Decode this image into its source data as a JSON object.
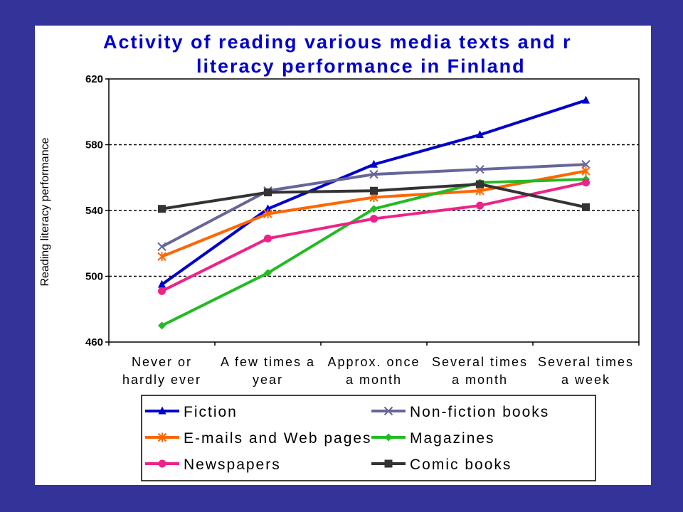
{
  "chart_data": {
    "type": "line",
    "title_lines": [
      "Activity of reading various media texts and r",
      "literacy performance in Finland"
    ],
    "xlabel": "",
    "ylabel": "Reading literacy performance",
    "ylim": [
      460,
      620
    ],
    "yticks": [
      460,
      500,
      540,
      580,
      620
    ],
    "grid": "horizontal dashed",
    "legend_position": "bottom",
    "categories": [
      [
        "Never or",
        "hardly ever"
      ],
      [
        "A few times a",
        "year"
      ],
      [
        "Approx. once",
        "a month"
      ],
      [
        "Several times",
        "a month"
      ],
      [
        "Several times",
        "a week"
      ]
    ],
    "series": [
      {
        "name": "Fiction",
        "color": "#0000cc",
        "marker": "triangle",
        "values": [
          495,
          541,
          568,
          586,
          607
        ]
      },
      {
        "name": "Non-fiction books",
        "color": "#666699",
        "marker": "x",
        "values": [
          518,
          552,
          562,
          565,
          568
        ]
      },
      {
        "name": "E-mails and Web pages",
        "color": "#ff6600",
        "marker": "asterisk",
        "values": [
          512,
          538,
          548,
          552,
          564
        ]
      },
      {
        "name": "Magazines",
        "color": "#22bb22",
        "marker": "diamond",
        "values": [
          470,
          502,
          541,
          557,
          559
        ]
      },
      {
        "name": "Newspapers",
        "color": "#ee2288",
        "marker": "circle",
        "values": [
          491,
          523,
          535,
          543,
          557
        ]
      },
      {
        "name": "Comic books",
        "color": "#333333",
        "marker": "square",
        "values": [
          541,
          551,
          552,
          556,
          542
        ]
      }
    ]
  }
}
